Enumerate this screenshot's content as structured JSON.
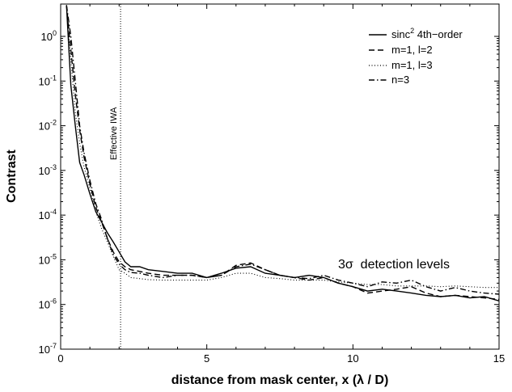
{
  "chart_data": {
    "type": "line",
    "title": "",
    "xlabel": "distance from mask center, x (λ / D)",
    "ylabel": "Contrast",
    "xlim": [
      0,
      15
    ],
    "ylim": [
      1e-07,
      5
    ],
    "yscale": "log",
    "x_ticks": [
      0,
      5,
      10,
      15
    ],
    "x_tick_labels": [
      "0",
      "5",
      "10",
      "15"
    ],
    "y_ticks": [
      1,
      0.1,
      0.01,
      0.001,
      0.0001,
      1e-05,
      1e-06,
      1e-07
    ],
    "y_tick_labels": [
      {
        "base": "10",
        "exp": "0"
      },
      {
        "base": "10",
        "exp": "-1"
      },
      {
        "base": "10",
        "exp": "-2"
      },
      {
        "base": "10",
        "exp": "-3"
      },
      {
        "base": "10",
        "exp": "-4"
      },
      {
        "base": "10",
        "exp": "-5"
      },
      {
        "base": "10",
        "exp": "-6"
      },
      {
        "base": "10",
        "exp": "-7"
      }
    ],
    "grid": false,
    "legend": {
      "placement": "top-right",
      "entries": [
        {
          "base": "sinc",
          "sup": "2",
          "rest": " 4th−order",
          "style": "solid"
        },
        {
          "base": "m=1, l=2",
          "sup": "",
          "rest": "",
          "style": "dashed"
        },
        {
          "base": "m=1, l=3",
          "sup": "",
          "rest": "",
          "style": "dotted"
        },
        {
          "base": "n=3",
          "sup": "",
          "rest": "",
          "style": "dashdot"
        }
      ]
    },
    "annotations": {
      "iwa_label": "Effective IWA",
      "iwa_x": 2.05,
      "detection_label_prefix": "3",
      "detection_label_sigma": "σ",
      "detection_label_suffix": "  detection levels"
    },
    "series": [
      {
        "name": "sinc^2 4th-order",
        "style": "solid",
        "x": [
          0.2,
          0.35,
          0.5,
          0.65,
          0.8,
          1.0,
          1.2,
          1.4,
          1.6,
          1.8,
          2.0,
          2.2,
          2.4,
          2.7,
          3.0,
          3.5,
          4.0,
          4.5,
          5.0,
          5.5,
          6.0,
          6.5,
          7.0,
          7.5,
          8.0,
          8.5,
          9.0,
          9.5,
          10.0,
          10.5,
          11.0,
          11.5,
          12.0,
          12.5,
          13.0,
          13.5,
          14.0,
          14.5,
          15.0
        ],
        "y": [
          5,
          0.08,
          0.01,
          0.0015,
          0.0008,
          0.0003,
          0.00012,
          7e-05,
          4e-05,
          2.5e-05,
          1.5e-05,
          9e-06,
          7e-06,
          7e-06,
          6e-06,
          5.5e-06,
          5e-06,
          5e-06,
          4e-06,
          5e-06,
          6.5e-06,
          7e-06,
          5e-06,
          4.5e-06,
          4e-06,
          4.5e-06,
          4e-06,
          3e-06,
          2.5e-06,
          2e-06,
          2.2e-06,
          2e-06,
          1.8e-06,
          1.6e-06,
          1.5e-06,
          1.6e-06,
          1.4e-06,
          1.5e-06,
          1.2e-06
        ]
      },
      {
        "name": "m=1, l=2",
        "style": "dashed",
        "x": [
          0.2,
          0.35,
          0.5,
          0.65,
          0.8,
          1.0,
          1.2,
          1.4,
          1.6,
          1.8,
          2.0,
          2.2,
          2.4,
          2.7,
          3.0,
          3.5,
          4.0,
          4.5,
          5.0,
          5.5,
          6.0,
          6.5,
          7.0,
          7.5,
          8.0,
          8.5,
          9.0,
          9.5,
          10.0,
          10.5,
          11.0,
          11.5,
          12.0,
          12.5,
          13.0,
          13.5,
          14.0,
          14.5,
          15.0
        ],
        "y": [
          5,
          0.5,
          0.05,
          0.008,
          0.002,
          0.0005,
          0.00015,
          7e-05,
          3e-05,
          1.5e-05,
          9e-06,
          7e-06,
          6e-06,
          5.5e-06,
          5e-06,
          4.5e-06,
          4.5e-06,
          4.5e-06,
          4e-06,
          4.5e-06,
          7.5e-06,
          8.5e-06,
          6e-06,
          4.5e-06,
          4e-06,
          3.5e-06,
          4e-06,
          3e-06,
          2.5e-06,
          1.8e-06,
          2e-06,
          2.2e-06,
          2.5e-06,
          1.8e-06,
          1.5e-06,
          1.6e-06,
          1.5e-06,
          1.4e-06,
          1.3e-06
        ]
      },
      {
        "name": "m=1, l=3",
        "style": "dotted",
        "x": [
          0.2,
          0.35,
          0.5,
          0.65,
          0.8,
          1.0,
          1.2,
          1.4,
          1.6,
          1.8,
          2.0,
          2.2,
          2.4,
          2.7,
          3.0,
          3.5,
          4.0,
          4.5,
          5.0,
          5.5,
          6.0,
          6.5,
          7.0,
          7.5,
          8.0,
          8.5,
          9.0,
          9.5,
          10.0,
          10.5,
          11.0,
          11.5,
          12.0,
          12.5,
          13.0,
          13.5,
          14.0,
          14.5,
          15.0
        ],
        "y": [
          5,
          0.3,
          0.02,
          0.004,
          0.0012,
          0.0004,
          0.00012,
          5e-05,
          2.5e-05,
          1.2e-05,
          6e-06,
          5e-06,
          4e-06,
          3.8e-06,
          3.6e-06,
          3.5e-06,
          3.5e-06,
          3.5e-06,
          3.5e-06,
          4e-06,
          5e-06,
          5e-06,
          4e-06,
          3.8e-06,
          3.5e-06,
          3.5e-06,
          3.5e-06,
          3.2e-06,
          3e-06,
          2.8e-06,
          2.8e-06,
          2.6e-06,
          2.6e-06,
          2.6e-06,
          2.5e-06,
          2.6e-06,
          2.5e-06,
          2.4e-06,
          2.4e-06
        ]
      },
      {
        "name": "n=3",
        "style": "dashdot",
        "x": [
          0.2,
          0.35,
          0.5,
          0.65,
          0.8,
          1.0,
          1.2,
          1.4,
          1.6,
          1.8,
          2.0,
          2.2,
          2.4,
          2.7,
          3.0,
          3.5,
          4.0,
          4.5,
          5.0,
          5.5,
          6.0,
          6.5,
          7.0,
          7.5,
          8.0,
          8.5,
          9.0,
          9.5,
          10.0,
          10.5,
          11.0,
          11.5,
          12.0,
          12.5,
          13.0,
          13.5,
          14.0,
          14.5,
          15.0
        ],
        "y": [
          5,
          1.0,
          0.1,
          0.01,
          0.0025,
          0.0006,
          0.00018,
          8e-05,
          3e-05,
          1.3e-05,
          8e-06,
          6e-06,
          5.2e-06,
          5e-06,
          4.5e-06,
          4e-06,
          4.5e-06,
          4.5e-06,
          4e-06,
          4.5e-06,
          7e-06,
          8e-06,
          6e-06,
          4.5e-06,
          4e-06,
          3.8e-06,
          4.5e-06,
          3.5e-06,
          3e-06,
          2.5e-06,
          3.2e-06,
          3e-06,
          3.5e-06,
          2.5e-06,
          2e-06,
          2.4e-06,
          2e-06,
          1.8e-06,
          1.7e-06
        ]
      }
    ]
  }
}
